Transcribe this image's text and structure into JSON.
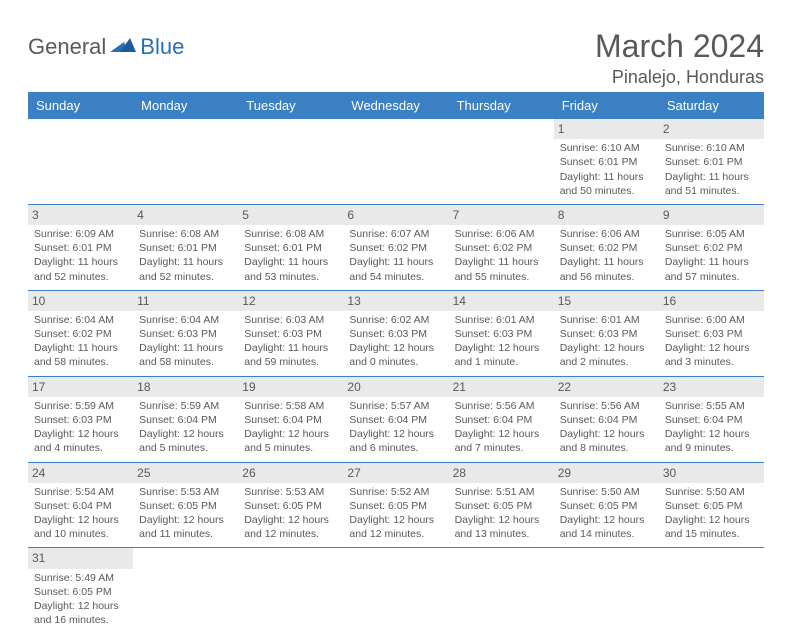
{
  "logo": {
    "part1": "General",
    "part2": "Blue"
  },
  "title": "March 2024",
  "location": "Pinalejo, Honduras",
  "colors": {
    "header_bg": "#3a80c3",
    "header_text": "#ffffff",
    "daynum_bg": "#e9e9e9",
    "border": "#3a80c3",
    "text": "#595959",
    "logo_blue": "#2a6fb5"
  },
  "day_headers": [
    "Sunday",
    "Monday",
    "Tuesday",
    "Wednesday",
    "Thursday",
    "Friday",
    "Saturday"
  ],
  "weeks": [
    [
      null,
      null,
      null,
      null,
      null,
      {
        "n": "1",
        "sr": "Sunrise: 6:10 AM",
        "ss": "Sunset: 6:01 PM",
        "dl": "Daylight: 11 hours and 50 minutes."
      },
      {
        "n": "2",
        "sr": "Sunrise: 6:10 AM",
        "ss": "Sunset: 6:01 PM",
        "dl": "Daylight: 11 hours and 51 minutes."
      }
    ],
    [
      {
        "n": "3",
        "sr": "Sunrise: 6:09 AM",
        "ss": "Sunset: 6:01 PM",
        "dl": "Daylight: 11 hours and 52 minutes."
      },
      {
        "n": "4",
        "sr": "Sunrise: 6:08 AM",
        "ss": "Sunset: 6:01 PM",
        "dl": "Daylight: 11 hours and 52 minutes."
      },
      {
        "n": "5",
        "sr": "Sunrise: 6:08 AM",
        "ss": "Sunset: 6:01 PM",
        "dl": "Daylight: 11 hours and 53 minutes."
      },
      {
        "n": "6",
        "sr": "Sunrise: 6:07 AM",
        "ss": "Sunset: 6:02 PM",
        "dl": "Daylight: 11 hours and 54 minutes."
      },
      {
        "n": "7",
        "sr": "Sunrise: 6:06 AM",
        "ss": "Sunset: 6:02 PM",
        "dl": "Daylight: 11 hours and 55 minutes."
      },
      {
        "n": "8",
        "sr": "Sunrise: 6:06 AM",
        "ss": "Sunset: 6:02 PM",
        "dl": "Daylight: 11 hours and 56 minutes."
      },
      {
        "n": "9",
        "sr": "Sunrise: 6:05 AM",
        "ss": "Sunset: 6:02 PM",
        "dl": "Daylight: 11 hours and 57 minutes."
      }
    ],
    [
      {
        "n": "10",
        "sr": "Sunrise: 6:04 AM",
        "ss": "Sunset: 6:02 PM",
        "dl": "Daylight: 11 hours and 58 minutes."
      },
      {
        "n": "11",
        "sr": "Sunrise: 6:04 AM",
        "ss": "Sunset: 6:03 PM",
        "dl": "Daylight: 11 hours and 58 minutes."
      },
      {
        "n": "12",
        "sr": "Sunrise: 6:03 AM",
        "ss": "Sunset: 6:03 PM",
        "dl": "Daylight: 11 hours and 59 minutes."
      },
      {
        "n": "13",
        "sr": "Sunrise: 6:02 AM",
        "ss": "Sunset: 6:03 PM",
        "dl": "Daylight: 12 hours and 0 minutes."
      },
      {
        "n": "14",
        "sr": "Sunrise: 6:01 AM",
        "ss": "Sunset: 6:03 PM",
        "dl": "Daylight: 12 hours and 1 minute."
      },
      {
        "n": "15",
        "sr": "Sunrise: 6:01 AM",
        "ss": "Sunset: 6:03 PM",
        "dl": "Daylight: 12 hours and 2 minutes."
      },
      {
        "n": "16",
        "sr": "Sunrise: 6:00 AM",
        "ss": "Sunset: 6:03 PM",
        "dl": "Daylight: 12 hours and 3 minutes."
      }
    ],
    [
      {
        "n": "17",
        "sr": "Sunrise: 5:59 AM",
        "ss": "Sunset: 6:03 PM",
        "dl": "Daylight: 12 hours and 4 minutes."
      },
      {
        "n": "18",
        "sr": "Sunrise: 5:59 AM",
        "ss": "Sunset: 6:04 PM",
        "dl": "Daylight: 12 hours and 5 minutes."
      },
      {
        "n": "19",
        "sr": "Sunrise: 5:58 AM",
        "ss": "Sunset: 6:04 PM",
        "dl": "Daylight: 12 hours and 5 minutes."
      },
      {
        "n": "20",
        "sr": "Sunrise: 5:57 AM",
        "ss": "Sunset: 6:04 PM",
        "dl": "Daylight: 12 hours and 6 minutes."
      },
      {
        "n": "21",
        "sr": "Sunrise: 5:56 AM",
        "ss": "Sunset: 6:04 PM",
        "dl": "Daylight: 12 hours and 7 minutes."
      },
      {
        "n": "22",
        "sr": "Sunrise: 5:56 AM",
        "ss": "Sunset: 6:04 PM",
        "dl": "Daylight: 12 hours and 8 minutes."
      },
      {
        "n": "23",
        "sr": "Sunrise: 5:55 AM",
        "ss": "Sunset: 6:04 PM",
        "dl": "Daylight: 12 hours and 9 minutes."
      }
    ],
    [
      {
        "n": "24",
        "sr": "Sunrise: 5:54 AM",
        "ss": "Sunset: 6:04 PM",
        "dl": "Daylight: 12 hours and 10 minutes."
      },
      {
        "n": "25",
        "sr": "Sunrise: 5:53 AM",
        "ss": "Sunset: 6:05 PM",
        "dl": "Daylight: 12 hours and 11 minutes."
      },
      {
        "n": "26",
        "sr": "Sunrise: 5:53 AM",
        "ss": "Sunset: 6:05 PM",
        "dl": "Daylight: 12 hours and 12 minutes."
      },
      {
        "n": "27",
        "sr": "Sunrise: 5:52 AM",
        "ss": "Sunset: 6:05 PM",
        "dl": "Daylight: 12 hours and 12 minutes."
      },
      {
        "n": "28",
        "sr": "Sunrise: 5:51 AM",
        "ss": "Sunset: 6:05 PM",
        "dl": "Daylight: 12 hours and 13 minutes."
      },
      {
        "n": "29",
        "sr": "Sunrise: 5:50 AM",
        "ss": "Sunset: 6:05 PM",
        "dl": "Daylight: 12 hours and 14 minutes."
      },
      {
        "n": "30",
        "sr": "Sunrise: 5:50 AM",
        "ss": "Sunset: 6:05 PM",
        "dl": "Daylight: 12 hours and 15 minutes."
      }
    ],
    [
      {
        "n": "31",
        "sr": "Sunrise: 5:49 AM",
        "ss": "Sunset: 6:05 PM",
        "dl": "Daylight: 12 hours and 16 minutes."
      },
      null,
      null,
      null,
      null,
      null,
      null
    ]
  ]
}
